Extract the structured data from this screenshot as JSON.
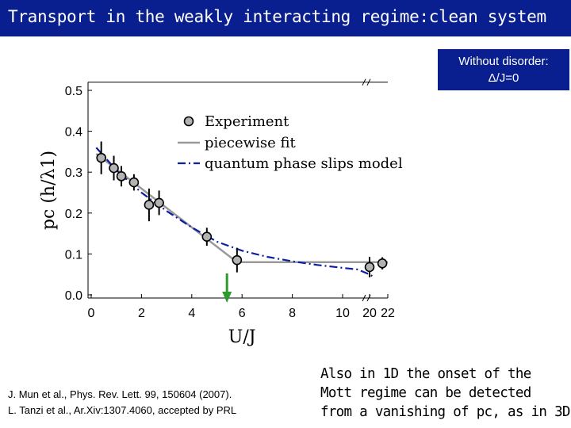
{
  "header": {
    "title": "Transport in the weakly interacting regime:clean system"
  },
  "badge": {
    "line1": "Without disorder:",
    "line2": "Δ/J=0"
  },
  "references": [
    "J. Mun et al., Phys. Rev. Lett. 99, 150604 (2007).",
    "L. Tanzi et al., Ar.Xiv:1307.4060, accepted by PRL"
  ],
  "note": [
    "Also in 1D the onset of the",
    "Mott regime can be detected",
    "from a vanishing of pc, as in 3D"
  ],
  "colors": {
    "title_bg": "#0a1f8f",
    "marker": "#b3b3b3",
    "fit": "#999999",
    "model": "#0b1fa0",
    "arrow": "#2e9a2e"
  },
  "chart_data": {
    "type": "scatter",
    "xlabel": "U/J",
    "ylabel": "pc (h/λ1)",
    "ylim": [
      0,
      0.5
    ],
    "x_ticks": [
      "0",
      "2",
      "4",
      "6",
      "8",
      "10",
      "20",
      "22"
    ],
    "y_ticks": [
      "0.0",
      "0.1",
      "0.2",
      "0.3",
      "0.4",
      "0.5"
    ],
    "x_axis_break": "between 10 and 20",
    "legend": [
      "Experiment",
      "piecewise fit",
      "quantum phase slips model"
    ],
    "legend_position": "top-right",
    "series": [
      {
        "name": "Experiment",
        "points": [
          {
            "x": 0.4,
            "y": 0.335,
            "err": 0.04
          },
          {
            "x": 0.9,
            "y": 0.31,
            "err": 0.03
          },
          {
            "x": 1.2,
            "y": 0.29,
            "err": 0.025
          },
          {
            "x": 1.7,
            "y": 0.275,
            "err": 0.02
          },
          {
            "x": 2.3,
            "y": 0.22,
            "err": 0.04
          },
          {
            "x": 2.7,
            "y": 0.225,
            "err": 0.03
          },
          {
            "x": 4.6,
            "y": 0.142,
            "err": 0.022
          },
          {
            "x": 5.8,
            "y": 0.085,
            "err": 0.03
          },
          {
            "x": 20.0,
            "y": 0.068,
            "err": 0.025
          },
          {
            "x": 21.4,
            "y": 0.077,
            "err": 0.015
          }
        ]
      },
      {
        "name": "piecewise fit",
        "points": [
          {
            "x": 0.2,
            "y": 0.345
          },
          {
            "x": 5.8,
            "y": 0.08
          },
          {
            "x": 22,
            "y": 0.08
          }
        ]
      },
      {
        "name": "quantum phase slips model",
        "points": [
          {
            "x": 0.2,
            "y": 0.36
          },
          {
            "x": 1.0,
            "y": 0.305
          },
          {
            "x": 2.0,
            "y": 0.25
          },
          {
            "x": 3.0,
            "y": 0.205
          },
          {
            "x": 4.0,
            "y": 0.165
          },
          {
            "x": 5.0,
            "y": 0.13
          },
          {
            "x": 6.0,
            "y": 0.108
          },
          {
            "x": 7.0,
            "y": 0.093
          },
          {
            "x": 8.0,
            "y": 0.082
          },
          {
            "x": 9.0,
            "y": 0.073
          },
          {
            "x": 10.0,
            "y": 0.066
          },
          {
            "x": 10.6,
            "y": 0.062
          },
          {
            "x": 20.0,
            "y": 0.05
          },
          {
            "x": 20.5,
            "y": 0.043
          }
        ]
      }
    ],
    "annotations": [
      {
        "type": "arrow",
        "x": 5.4,
        "direction": "down",
        "color": "green"
      }
    ]
  }
}
